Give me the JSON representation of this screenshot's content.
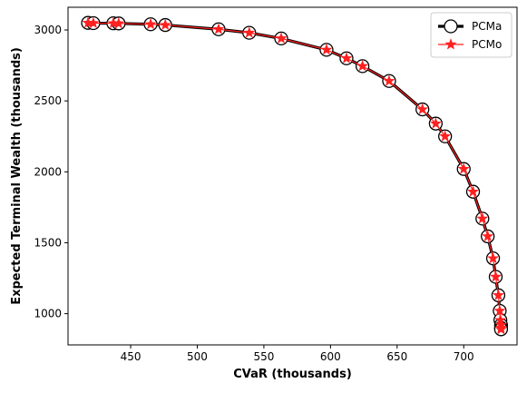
{
  "chart_data": {
    "type": "line",
    "xlabel": "CVaR (thousands)",
    "ylabel": "Expected Terminal Wealth (thousands)",
    "xlim": [
      403,
      740
    ],
    "ylim": [
      780,
      3160
    ],
    "xticks": [
      450,
      500,
      550,
      600,
      650,
      700
    ],
    "yticks": [
      1000,
      1500,
      2000,
      2500,
      3000
    ],
    "legend_position": "top-right",
    "series": [
      {
        "name": "PCMa",
        "color": "#000000",
        "marker": "circle-open",
        "x": [
          418,
          422,
          437,
          441,
          465,
          476,
          516,
          539,
          563,
          597,
          612,
          624,
          644,
          669,
          679,
          686,
          700,
          707,
          714,
          718,
          722,
          724,
          726,
          727,
          727.5,
          728,
          728,
          728
        ],
        "y": [
          3050,
          3048,
          3047,
          3046,
          3040,
          3035,
          3005,
          2980,
          2940,
          2860,
          2800,
          2745,
          2640,
          2440,
          2340,
          2250,
          2020,
          1860,
          1670,
          1545,
          1390,
          1260,
          1130,
          1020,
          955,
          920,
          900,
          890
        ]
      },
      {
        "name": "PCMo",
        "color": "#ff2020",
        "marker": "star",
        "x": [
          418,
          422,
          437,
          441,
          465,
          476,
          516,
          539,
          563,
          597,
          612,
          624,
          644,
          669,
          679,
          686,
          700,
          707,
          714,
          718,
          722,
          724,
          726,
          727,
          727.5,
          728,
          728,
          728
        ],
        "y": [
          3050,
          3048,
          3047,
          3046,
          3040,
          3035,
          3005,
          2980,
          2940,
          2860,
          2800,
          2745,
          2640,
          2440,
          2340,
          2250,
          2020,
          1860,
          1670,
          1545,
          1390,
          1260,
          1130,
          1020,
          955,
          920,
          900,
          890
        ]
      }
    ]
  }
}
